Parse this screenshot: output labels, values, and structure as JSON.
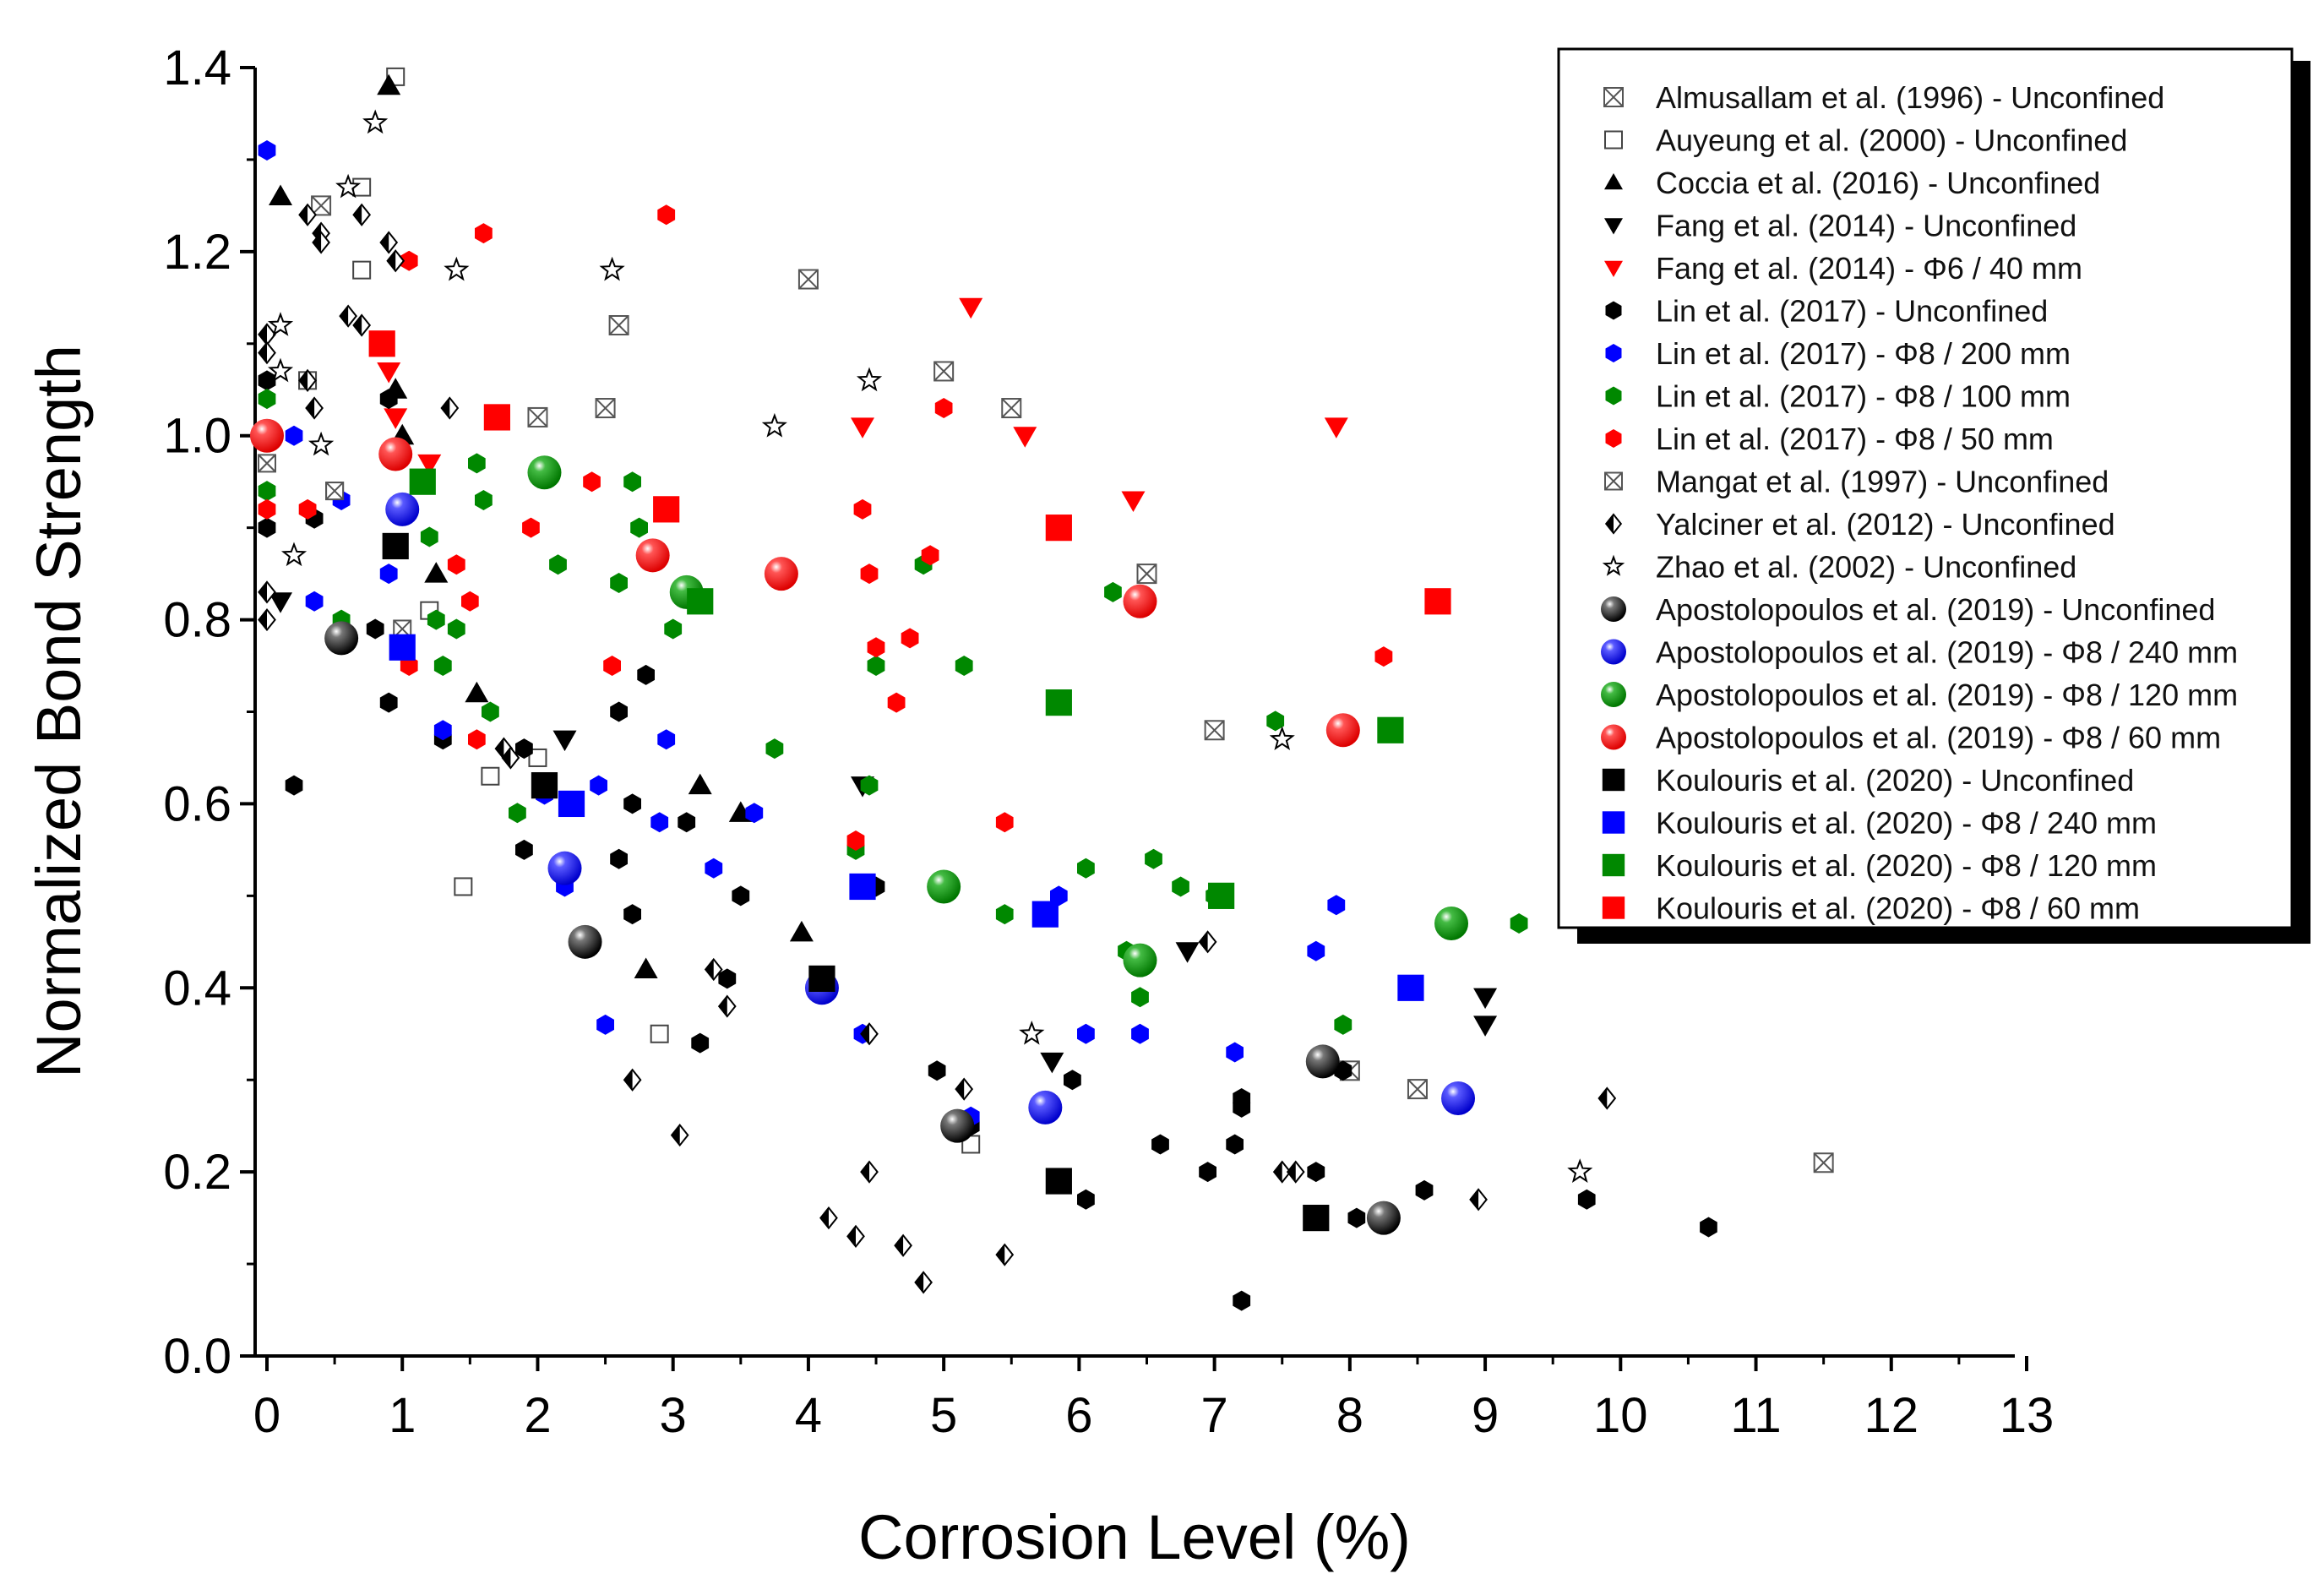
{
  "chart_data": {
    "type": "scatter",
    "xlabel": "Corrosion Level (%)",
    "ylabel": "Normalized Bond Strength",
    "xlim": [
      -0.2,
      13
    ],
    "ylim": [
      0,
      1.4
    ],
    "xticks": [
      "0",
      "1",
      "2",
      "3",
      "4",
      "5",
      "6",
      "7",
      "8",
      "9",
      "10",
      "11",
      "12",
      "13"
    ],
    "yticks": [
      "0.0",
      "0.2",
      "0.4",
      "0.6",
      "0.8",
      "1.0",
      "1.2",
      "1.4"
    ],
    "grid": false,
    "legend_position": "top-right",
    "series": [
      {
        "name": "Almusallam et al. (1996) - Unconfined",
        "marker": "boxx",
        "color": "#555555",
        "size": 11,
        "points": [
          [
            0.4,
            1.25
          ],
          [
            2.6,
            1.12
          ],
          [
            4.0,
            1.17
          ],
          [
            5.0,
            1.07
          ],
          [
            5.5,
            1.03
          ],
          [
            6.5,
            0.85
          ],
          [
            7.0,
            0.68
          ],
          [
            8.0,
            0.31
          ],
          [
            8.5,
            0.29
          ],
          [
            11.5,
            0.21
          ],
          [
            2.0,
            1.02
          ],
          [
            2.5,
            1.03
          ]
        ]
      },
      {
        "name": "Auyeung et al. (2000) - Unconfined",
        "marker": "sqopen",
        "color": "#444444",
        "size": 10,
        "points": [
          [
            0.95,
            1.39
          ],
          [
            0.7,
            1.27
          ],
          [
            0.7,
            1.18
          ],
          [
            0.3,
            1.06
          ],
          [
            0.5,
            0.94
          ],
          [
            1.2,
            0.81
          ],
          [
            1.65,
            0.63
          ],
          [
            2.0,
            0.65
          ],
          [
            1.45,
            0.51
          ],
          [
            2.9,
            0.35
          ],
          [
            5.2,
            0.23
          ]
        ]
      },
      {
        "name": "Coccia et al. (2016) - Unconfined",
        "marker": "tri",
        "color": "#000000",
        "size": 14,
        "points": [
          [
            0.9,
            1.38
          ],
          [
            0.1,
            1.26
          ],
          [
            0.95,
            1.05
          ],
          [
            1.0,
            1.0
          ],
          [
            1.25,
            0.85
          ],
          [
            1.55,
            0.72
          ],
          [
            3.2,
            0.62
          ],
          [
            3.5,
            0.59
          ],
          [
            3.95,
            0.46
          ],
          [
            2.8,
            0.42
          ]
        ]
      },
      {
        "name": "Fang et al. (2014) - Unconfined",
        "marker": "tridown",
        "color": "#000000",
        "size": 14,
        "points": [
          [
            0.1,
            0.82
          ],
          [
            2.2,
            0.67
          ],
          [
            4.4,
            0.62
          ],
          [
            5.8,
            0.32
          ],
          [
            9.0,
            0.39
          ],
          [
            9.0,
            0.36
          ],
          [
            6.8,
            0.44
          ]
        ]
      },
      {
        "name": "Fang et al. (2014) - Φ6 / 40 mm",
        "marker": "tridown",
        "color": "#ff0000",
        "size": 14,
        "points": [
          [
            0.9,
            1.07
          ],
          [
            0.95,
            1.02
          ],
          [
            1.2,
            0.97
          ],
          [
            4.4,
            1.01
          ],
          [
            5.2,
            1.14
          ],
          [
            5.6,
            1.0
          ],
          [
            6.4,
            0.93
          ],
          [
            7.9,
            1.01
          ]
        ]
      },
      {
        "name": "Lin et al. (2017) - Unconfined",
        "marker": "hex",
        "color": "#000000",
        "size": 12,
        "points": [
          [
            0.0,
            1.06
          ],
          [
            0.0,
            1.0
          ],
          [
            0.0,
            0.9
          ],
          [
            0.35,
            0.91
          ],
          [
            0.9,
            1.04
          ],
          [
            0.2,
            0.62
          ],
          [
            0.8,
            0.79
          ],
          [
            0.9,
            0.71
          ],
          [
            1.3,
            0.67
          ],
          [
            1.9,
            0.66
          ],
          [
            1.9,
            0.55
          ],
          [
            2.6,
            0.7
          ],
          [
            2.8,
            0.74
          ],
          [
            2.7,
            0.6
          ],
          [
            2.6,
            0.54
          ],
          [
            2.7,
            0.48
          ],
          [
            3.1,
            0.58
          ],
          [
            3.2,
            0.34
          ],
          [
            3.4,
            0.41
          ],
          [
            3.5,
            0.5
          ],
          [
            4.5,
            0.51
          ],
          [
            4.95,
            0.31
          ],
          [
            5.2,
            0.25
          ],
          [
            5.95,
            0.3
          ],
          [
            6.05,
            0.17
          ],
          [
            6.6,
            0.23
          ],
          [
            6.95,
            0.2
          ],
          [
            7.15,
            0.23
          ],
          [
            7.2,
            0.27
          ],
          [
            7.2,
            0.28
          ],
          [
            7.2,
            0.06
          ],
          [
            7.75,
            0.2
          ],
          [
            7.95,
            0.31
          ],
          [
            8.05,
            0.15
          ],
          [
            8.55,
            0.18
          ],
          [
            9.75,
            0.17
          ],
          [
            10.65,
            0.14
          ]
        ]
      },
      {
        "name": "Lin et al. (2017) - Φ8 / 200 mm",
        "marker": "hex",
        "color": "#0000ff",
        "size": 12,
        "points": [
          [
            0.0,
            1.31
          ],
          [
            0.2,
            1.0
          ],
          [
            0.35,
            0.82
          ],
          [
            0.55,
            0.93
          ],
          [
            0.55,
            0.78
          ],
          [
            0.9,
            0.85
          ],
          [
            1.3,
            0.68
          ],
          [
            2.05,
            0.61
          ],
          [
            2.2,
            0.51
          ],
          [
            2.45,
            0.62
          ],
          [
            2.5,
            0.36
          ],
          [
            2.9,
            0.58
          ],
          [
            2.95,
            0.67
          ],
          [
            3.3,
            0.53
          ],
          [
            3.6,
            0.59
          ],
          [
            4.4,
            0.35
          ],
          [
            5.2,
            0.26
          ],
          [
            5.85,
            0.5
          ],
          [
            6.05,
            0.35
          ],
          [
            6.45,
            0.35
          ],
          [
            7.15,
            0.33
          ],
          [
            7.75,
            0.44
          ],
          [
            7.9,
            0.49
          ]
        ]
      },
      {
        "name": "Lin et al. (2017) - Φ8 / 100 mm",
        "marker": "hex",
        "color": "#008800",
        "size": 12,
        "points": [
          [
            0.0,
            1.04
          ],
          [
            0.0,
            0.94
          ],
          [
            0.55,
            0.8
          ],
          [
            1.2,
            0.89
          ],
          [
            1.25,
            0.8
          ],
          [
            1.4,
            0.79
          ],
          [
            1.3,
            0.75
          ],
          [
            1.55,
            0.97
          ],
          [
            1.6,
            0.93
          ],
          [
            1.65,
            0.7
          ],
          [
            1.85,
            0.59
          ],
          [
            2.15,
            0.86
          ],
          [
            2.6,
            0.84
          ],
          [
            2.7,
            0.95
          ],
          [
            2.75,
            0.9
          ],
          [
            3.0,
            0.79
          ],
          [
            3.75,
            0.66
          ],
          [
            4.35,
            0.55
          ],
          [
            4.45,
            0.62
          ],
          [
            4.5,
            0.75
          ],
          [
            4.85,
            0.86
          ],
          [
            5.15,
            0.75
          ],
          [
            5.45,
            0.48
          ],
          [
            6.05,
            0.53
          ],
          [
            6.25,
            0.83
          ],
          [
            6.35,
            0.44
          ],
          [
            6.45,
            0.39
          ],
          [
            6.55,
            0.54
          ],
          [
            6.75,
            0.51
          ],
          [
            7.0,
            0.5
          ],
          [
            7.45,
            0.69
          ],
          [
            7.95,
            0.36
          ],
          [
            9.25,
            0.47
          ]
        ]
      },
      {
        "name": "Lin et al. (2017) - Φ8 / 50 mm",
        "marker": "hex",
        "color": "#ff0000",
        "size": 12,
        "points": [
          [
            0.0,
            0.92
          ],
          [
            0.3,
            0.92
          ],
          [
            1.05,
            1.19
          ],
          [
            1.05,
            0.75
          ],
          [
            1.4,
            0.86
          ],
          [
            1.5,
            0.82
          ],
          [
            1.55,
            0.67
          ],
          [
            1.6,
            1.22
          ],
          [
            1.95,
            0.9
          ],
          [
            2.4,
            0.95
          ],
          [
            2.55,
            0.75
          ],
          [
            2.95,
            1.24
          ],
          [
            4.35,
            0.56
          ],
          [
            4.4,
            0.92
          ],
          [
            4.45,
            0.85
          ],
          [
            4.5,
            0.77
          ],
          [
            4.65,
            0.71
          ],
          [
            4.75,
            0.78
          ],
          [
            4.9,
            0.87
          ],
          [
            5.0,
            1.03
          ],
          [
            5.45,
            0.58
          ],
          [
            8.25,
            0.76
          ]
        ]
      },
      {
        "name": "Mangat et al. (1997) - Unconfined",
        "marker": "boxx",
        "color": "#555555",
        "size": 10,
        "points": [
          [
            0.0,
            1.0
          ],
          [
            0.0,
            0.97
          ],
          [
            0.5,
            0.94
          ],
          [
            1.0,
            0.79
          ]
        ]
      },
      {
        "name": "Yalciner et al. (2012) - Unconfined",
        "marker": "halfdiamond",
        "color": "#000000",
        "size": 12,
        "points": [
          [
            0.0,
            1.11
          ],
          [
            0.0,
            1.09
          ],
          [
            0.0,
            0.83
          ],
          [
            0.0,
            0.8
          ],
          [
            0.3,
            1.24
          ],
          [
            0.4,
            1.22
          ],
          [
            0.4,
            1.21
          ],
          [
            0.3,
            1.06
          ],
          [
            0.35,
            1.03
          ],
          [
            0.7,
            1.24
          ],
          [
            0.9,
            1.21
          ],
          [
            0.95,
            1.19
          ],
          [
            0.7,
            1.12
          ],
          [
            0.6,
            1.13
          ],
          [
            1.35,
            1.03
          ],
          [
            1.75,
            0.66
          ],
          [
            1.8,
            0.65
          ],
          [
            2.7,
            0.3
          ],
          [
            3.05,
            0.24
          ],
          [
            3.3,
            0.42
          ],
          [
            3.4,
            0.38
          ],
          [
            4.15,
            0.15
          ],
          [
            4.35,
            0.13
          ],
          [
            4.45,
            0.35
          ],
          [
            4.45,
            0.2
          ],
          [
            4.7,
            0.12
          ],
          [
            4.85,
            0.08
          ],
          [
            5.15,
            0.29
          ],
          [
            5.45,
            0.11
          ],
          [
            6.95,
            0.45
          ],
          [
            7.5,
            0.2
          ],
          [
            7.6,
            0.2
          ],
          [
            8.95,
            0.17
          ],
          [
            9.9,
            0.28
          ]
        ]
      },
      {
        "name": "Zhao et al. (2002) - Unconfined",
        "marker": "star",
        "color": "#000000",
        "size": 13,
        "points": [
          [
            0.8,
            1.34
          ],
          [
            0.6,
            1.27
          ],
          [
            0.1,
            1.12
          ],
          [
            0.1,
            1.07
          ],
          [
            0.4,
            0.99
          ],
          [
            0.2,
            0.87
          ],
          [
            1.4,
            1.18
          ],
          [
            2.55,
            1.18
          ],
          [
            3.75,
            1.01
          ],
          [
            4.45,
            1.06
          ],
          [
            5.65,
            0.35
          ],
          [
            7.5,
            0.67
          ],
          [
            9.7,
            0.2
          ]
        ]
      },
      {
        "name": "Apostolopoulos et al. (2019) - Unconfined",
        "marker": "ball",
        "color": "#000000",
        "size": 20,
        "points": [
          [
            0.55,
            0.78
          ],
          [
            2.35,
            0.45
          ],
          [
            5.1,
            0.25
          ],
          [
            7.8,
            0.32
          ],
          [
            8.25,
            0.15
          ]
        ]
      },
      {
        "name": "Apostolopoulos et al. (2019) - Φ8 / 240 mm",
        "marker": "ball",
        "color": "#0000ff",
        "size": 20,
        "points": [
          [
            1.0,
            0.92
          ],
          [
            2.2,
            0.53
          ],
          [
            4.1,
            0.4
          ],
          [
            5.75,
            0.27
          ],
          [
            8.8,
            0.28
          ]
        ]
      },
      {
        "name": "Apostolopoulos et al. (2019) - Φ8 / 120 mm",
        "marker": "ball",
        "color": "#009900",
        "size": 20,
        "points": [
          [
            2.05,
            0.96
          ],
          [
            3.1,
            0.83
          ],
          [
            5.0,
            0.51
          ],
          [
            6.45,
            0.43
          ],
          [
            8.75,
            0.47
          ]
        ]
      },
      {
        "name": "Apostolopoulos et al. (2019) - Φ8 / 60 mm",
        "marker": "ball",
        "color": "#ff0000",
        "size": 20,
        "points": [
          [
            0.0,
            1.0
          ],
          [
            0.95,
            0.98
          ],
          [
            2.85,
            0.87
          ],
          [
            3.8,
            0.85
          ],
          [
            6.45,
            0.82
          ],
          [
            7.95,
            0.68
          ]
        ]
      },
      {
        "name": "Koulouris et al. (2020) - Unconfined",
        "marker": "square",
        "color": "#000000",
        "size": 26,
        "points": [
          [
            0.95,
            0.88
          ],
          [
            2.05,
            0.62
          ],
          [
            4.1,
            0.41
          ],
          [
            5.85,
            0.19
          ],
          [
            7.75,
            0.15
          ]
        ]
      },
      {
        "name": "Koulouris et al. (2020) - Φ8 / 240 mm",
        "marker": "square",
        "color": "#0000ff",
        "size": 26,
        "points": [
          [
            1.0,
            0.77
          ],
          [
            2.25,
            0.6
          ],
          [
            4.4,
            0.51
          ],
          [
            5.75,
            0.48
          ],
          [
            8.45,
            0.4
          ]
        ]
      },
      {
        "name": "Koulouris et al. (2020) - Φ8 / 120 mm",
        "marker": "square",
        "color": "#008800",
        "size": 26,
        "points": [
          [
            1.15,
            0.95
          ],
          [
            3.2,
            0.82
          ],
          [
            5.85,
            0.71
          ],
          [
            7.05,
            0.5
          ],
          [
            8.3,
            0.68
          ]
        ]
      },
      {
        "name": "Koulouris et al. (2020) - Φ8 / 60 mm",
        "marker": "square",
        "color": "#ff0000",
        "size": 26,
        "points": [
          [
            0.85,
            1.1
          ],
          [
            1.7,
            1.02
          ],
          [
            2.95,
            0.92
          ],
          [
            5.85,
            0.9
          ],
          [
            8.65,
            0.82
          ]
        ]
      }
    ]
  }
}
